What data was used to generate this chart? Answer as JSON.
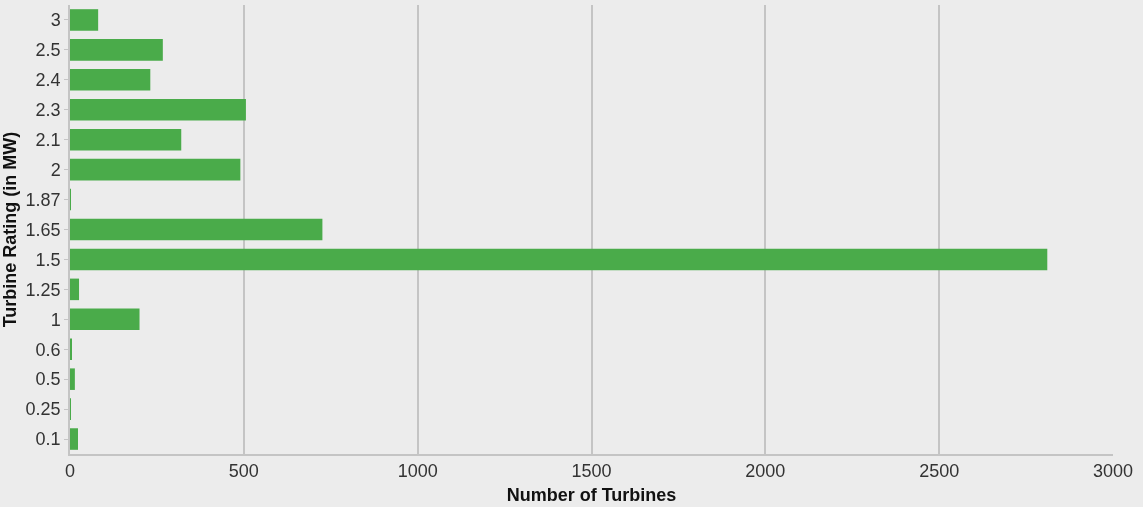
{
  "chart_data": {
    "type": "bar",
    "orientation": "horizontal",
    "xlabel": "Number of Turbines",
    "ylabel": "Turbine Rating (in MW)",
    "categories": [
      "3",
      "2.5",
      "2.4",
      "2.3",
      "2.1",
      "2",
      "1.87",
      "1.65",
      "1.5",
      "1.25",
      "1",
      "0.6",
      "0.5",
      "0.25",
      "0.1"
    ],
    "values": [
      81,
      267,
      231,
      506,
      320,
      490,
      1,
      726,
      2811,
      26,
      200,
      5,
      14,
      1,
      23
    ],
    "color": "#4aab4a",
    "xlim": [
      0,
      3000
    ],
    "xticks": [
      0,
      500,
      1000,
      1500,
      2000,
      2500,
      3000
    ],
    "grid": "x"
  }
}
